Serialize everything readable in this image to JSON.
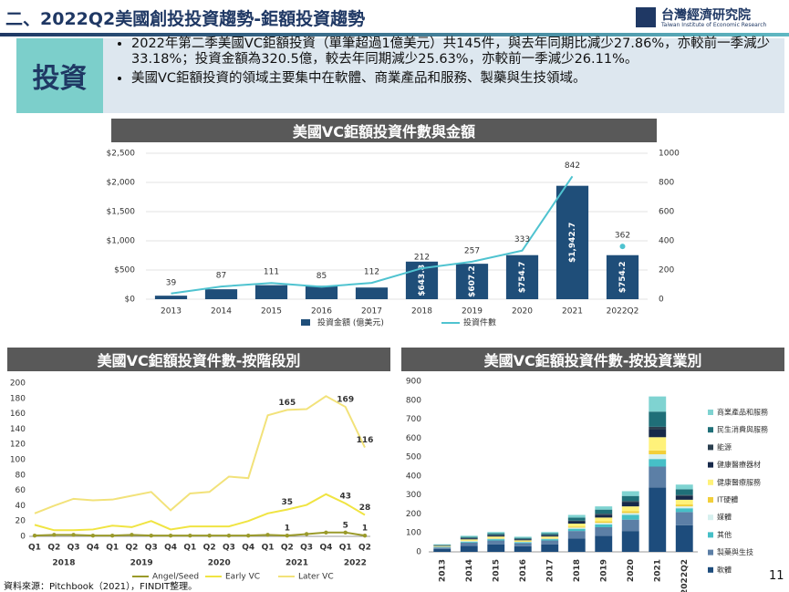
{
  "header": {
    "title": "二、2022Q2美國創投投資趨勢-鉅額投資趨勢",
    "logo": "台灣經濟研究院",
    "logo_subtitle": "Taiwan Institute of Economic Research"
  },
  "summary": {
    "label": "投資",
    "bullets": [
      "2022年第二季美國VC鉅額投資（單筆超過1億美元）共145件，與去年同期比減少27.86%，亦較前一季減少33.18%；投資金額為320.5億，較去年同期減少25.63%，亦較前一季減少26.11%。",
      "美國VC鉅額投資的領域主要集中在軟體、商業產品和服務、製藥與生技領域。"
    ]
  },
  "chart_data": [
    {
      "type": "combo",
      "title": "美國VC鉅額投資件數與金額",
      "categories": [
        "2013",
        "2014",
        "2015",
        "2016",
        "2017",
        "2018",
        "2019",
        "2020",
        "2021",
        "2022Q2"
      ],
      "series": [
        {
          "name": "投資金額 (億美元)",
          "color": "#1f4e79",
          "axis": "y",
          "values": [
            60,
            170,
            240,
            230,
            200,
            643.8,
            607.2,
            754.7,
            1942.7,
            754.2
          ],
          "value_labels": [
            null,
            null,
            null,
            null,
            null,
            "$643.8",
            "$607.2",
            "$754.7",
            "$1,942.7",
            "$754.2"
          ]
        },
        {
          "name": "投資件數",
          "color": "#4fc3d0",
          "axis": "y2",
          "values": [
            39,
            87,
            111,
            85,
            112,
            212,
            257,
            333,
            842,
            362
          ]
        }
      ],
      "ylim": [
        0,
        2500
      ],
      "yticks": [
        {
          "value": 0,
          "label": "$0"
        },
        {
          "value": 500,
          "label": "$500"
        },
        {
          "value": 1000,
          "label": "$1,000"
        },
        {
          "value": 1500,
          "label": "$1,500"
        },
        {
          "value": 2000,
          "label": "$2,000"
        },
        {
          "value": 2500,
          "label": "$2,500"
        }
      ],
      "y2lim": [
        0,
        1000
      ],
      "y2ticks": [
        0,
        200,
        400,
        600,
        800,
        1000
      ]
    },
    {
      "type": "line",
      "title": "美國VC鉅額投資件數-按階段別",
      "categories": [
        "Q1",
        "Q2",
        "Q3",
        "Q4",
        "Q1",
        "Q2",
        "Q3",
        "Q4",
        "Q1",
        "Q2",
        "Q3",
        "Q4",
        "Q1",
        "Q2",
        "Q3",
        "Q4",
        "Q1",
        "Q2"
      ],
      "year_groups": [
        "2018",
        "2019",
        "2020",
        "2021",
        "2022"
      ],
      "series": [
        {
          "name": "Angel/Seed",
          "color": "#9a9a2a",
          "values": [
            1,
            2,
            2,
            1,
            1,
            2,
            1,
            1,
            1,
            1,
            1,
            1,
            2,
            1,
            3,
            5,
            5,
            1
          ],
          "value_labels": [
            null,
            null,
            null,
            null,
            null,
            null,
            null,
            null,
            null,
            null,
            null,
            null,
            null,
            "1",
            null,
            null,
            "5",
            "1"
          ]
        },
        {
          "name": "Early VC",
          "color": "#f0e442",
          "values": [
            15,
            8,
            8,
            9,
            14,
            12,
            20,
            9,
            13,
            13,
            13,
            20,
            30,
            35,
            41,
            55,
            43,
            28
          ],
          "value_labels": [
            null,
            null,
            null,
            null,
            null,
            null,
            null,
            null,
            null,
            null,
            null,
            null,
            null,
            "35",
            null,
            null,
            "43",
            "28"
          ]
        },
        {
          "name": "Later VC",
          "color": "#f2e27a",
          "values": [
            30,
            40,
            49,
            47,
            48,
            53,
            58,
            34,
            56,
            58,
            78,
            76,
            158,
            165,
            166,
            183,
            169,
            116
          ],
          "value_labels": [
            null,
            null,
            null,
            null,
            null,
            null,
            null,
            null,
            null,
            null,
            null,
            null,
            null,
            "165",
            null,
            null,
            "169",
            "116"
          ]
        }
      ],
      "ylim": [
        0,
        200
      ],
      "yticks": [
        0,
        20,
        40,
        60,
        80,
        100,
        120,
        140,
        160,
        180,
        200
      ]
    },
    {
      "type": "stacked_bar",
      "title": "美國VC鉅額投資件數-按投資業別",
      "categories": [
        "2013",
        "2014",
        "2015",
        "2016",
        "2017",
        "2018",
        "2019",
        "2020",
        "2021",
        "2022Q2"
      ],
      "series": [
        {
          "name": "商業產品和服務",
          "color": "#7fd3d1",
          "values": [
            3,
            6,
            7,
            6,
            7,
            14,
            17,
            25,
            80,
            25
          ]
        },
        {
          "name": "民生消費與服務",
          "color": "#1f6f78",
          "values": [
            3,
            6,
            8,
            6,
            8,
            16,
            22,
            27,
            80,
            30
          ]
        },
        {
          "name": "能源",
          "color": "#2b3f4f",
          "values": [
            1,
            2,
            2,
            2,
            2,
            4,
            5,
            8,
            15,
            5
          ]
        },
        {
          "name": "健康醫療器材",
          "color": "#17294a",
          "values": [
            2,
            5,
            7,
            5,
            7,
            12,
            15,
            20,
            40,
            20
          ]
        },
        {
          "name": "健康醫療服務",
          "color": "#fff27a",
          "values": [
            3,
            7,
            8,
            6,
            8,
            15,
            20,
            25,
            70,
            25
          ]
        },
        {
          "name": "IT硬體",
          "color": "#f2cf3a",
          "values": [
            1,
            2,
            3,
            2,
            3,
            6,
            8,
            10,
            20,
            10
          ]
        },
        {
          "name": "媒體",
          "color": "#d6f0ef",
          "values": [
            1,
            3,
            3,
            2,
            3,
            6,
            8,
            10,
            25,
            10
          ]
        },
        {
          "name": "其他",
          "color": "#46bfc7",
          "values": [
            3,
            5,
            7,
            5,
            7,
            12,
            15,
            25,
            40,
            20
          ]
        },
        {
          "name": "製藥與生技",
          "color": "#5c7fa6",
          "values": [
            8,
            17,
            20,
            16,
            20,
            40,
            45,
            60,
            110,
            70
          ]
        },
        {
          "name": "軟體",
          "color": "#1d4c7c",
          "values": [
            15,
            32,
            40,
            30,
            40,
            70,
            85,
            110,
            340,
            140
          ]
        }
      ],
      "ylim": [
        0,
        900
      ],
      "yticks": [
        0,
        100,
        200,
        300,
        400,
        500,
        600,
        700,
        800,
        900
      ]
    }
  ],
  "footer": {
    "source": "資料來源：Pitchbook（2021），FINDIT整理。",
    "page": "11"
  }
}
